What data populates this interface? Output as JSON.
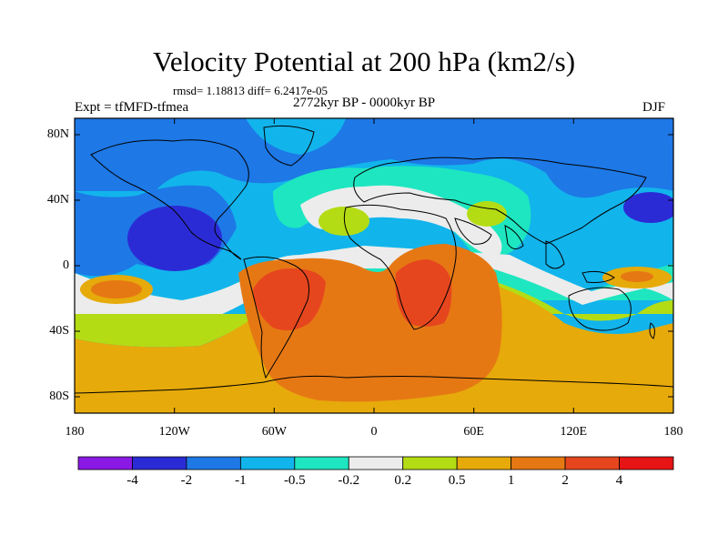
{
  "title": "Velocity Potential at 200 hPa (km2/s)",
  "stats": "rmsd= 1.18813 diff= 6.2417e-05",
  "left_label": "Expt = tfMFD-tfmea",
  "center_label": "2772kyr BP - 0000kyr BP",
  "right_label": "DJF",
  "y_ticks": [
    "80N",
    "40N",
    "0",
    "40S",
    "80S"
  ],
  "x_ticks": [
    "180",
    "120W",
    "60W",
    "0",
    "60E",
    "120E",
    "180"
  ],
  "colorbar": {
    "labels": [
      "-4",
      "-2",
      "-1",
      "-0.5",
      "-0.2",
      "0.2",
      "0.5",
      "1",
      "2",
      "4"
    ],
    "colors": [
      "#8a19e6",
      "#2b2bd6",
      "#1e78e6",
      "#12b4ec",
      "#1ee6c0",
      "#ececec",
      "#b4dc14",
      "#e6aa0a",
      "#e67814",
      "#e6461e",
      "#e61414"
    ]
  },
  "chart_data": {
    "type": "filled-contour-map",
    "title": "Velocity Potential at 200 hPa (km2/s)",
    "units": "km2/s",
    "levels": [
      -4,
      -2,
      -1,
      -0.5,
      -0.2,
      0.2,
      0.5,
      1,
      2,
      4
    ],
    "x_range": [
      -180,
      180
    ],
    "y_range": [
      -90,
      90
    ]
  }
}
